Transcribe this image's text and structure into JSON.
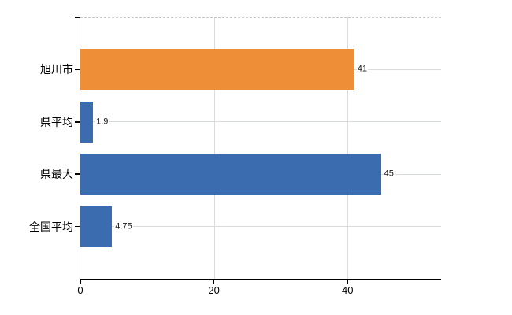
{
  "chart_data": {
    "type": "bar",
    "orientation": "horizontal",
    "title": "",
    "categories": [
      "旭川市",
      "県平均",
      "県最大",
      "全国平均"
    ],
    "values": [
      41,
      1.9,
      45,
      4.75
    ],
    "value_labels": [
      "41",
      "1.9",
      "45",
      "4.75"
    ],
    "bar_colors": [
      "#ee8f38",
      "#3c6cb0",
      "#3c6cb0",
      "#3c6cb0"
    ],
    "xlabel": "",
    "ylabel": "",
    "xlim": [
      0,
      54
    ],
    "xticks": [
      0,
      20,
      40
    ],
    "xtick_labels": [
      "0",
      "20",
      "40"
    ],
    "grid": true,
    "legend": false,
    "background_color": "#ffffff",
    "gridline_color": "#d9ddd9",
    "axis_color": "#000000",
    "top_border_style": "dashed"
  }
}
